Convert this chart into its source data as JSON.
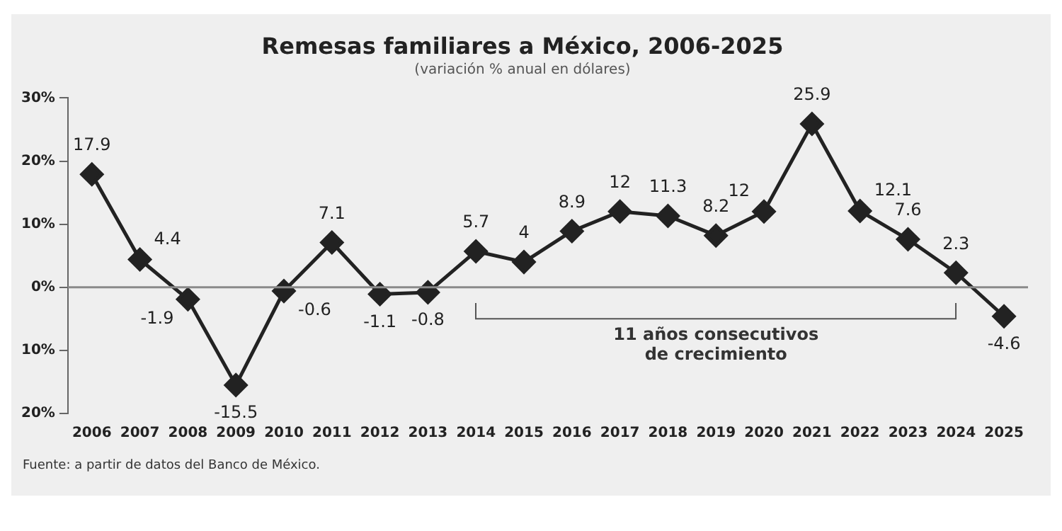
{
  "chart_data": {
    "type": "line",
    "title": "Remesas familiares a México, 2006-2025",
    "subtitle": "(variación % anual en dólares)",
    "categories": [
      "2006",
      "2007",
      "2008",
      "2009",
      "2010",
      "2011",
      "2012",
      "2013",
      "2014",
      "2015",
      "2016",
      "2017",
      "2018",
      "2019",
      "2020",
      "2021",
      "2022",
      "2023",
      "2024",
      "2025"
    ],
    "series": [
      {
        "color": "#222222",
        "values": [
          17.9,
          4.4,
          -1.9,
          -15.5,
          -0.6,
          7.1,
          -1.1,
          -0.8,
          5.7,
          4,
          8.9,
          12,
          11.3,
          8.2,
          12,
          25.9,
          12.1,
          7.6,
          2.3,
          -4.6
        ]
      }
    ],
    "ylim": [
      -20,
      30
    ],
    "yticks": [
      {
        "value": -20,
        "label": "20%"
      },
      {
        "value": -10,
        "label": "10%"
      },
      {
        "value": 0,
        "label": "0%"
      },
      {
        "value": 10,
        "label": "10%"
      },
      {
        "value": 20,
        "label": "20%"
      },
      {
        "value": 30,
        "label": "30%"
      }
    ],
    "ref_lines": [
      {
        "axis": "y",
        "value": 0,
        "color": "#8a8a8a"
      }
    ],
    "annotations": [
      "11 años consecutivos de crecimiento",
      "Fuente: a partir de datos del Banco de México."
    ],
    "data_labels": true,
    "marker": "diamond",
    "line_style": "solid",
    "grid": false,
    "legend": false
  }
}
